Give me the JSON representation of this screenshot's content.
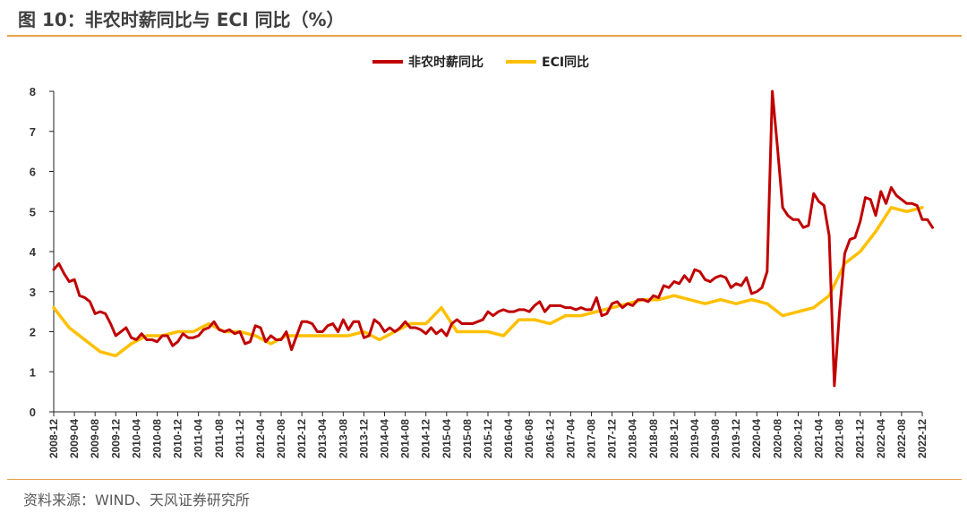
{
  "header": {
    "title": "图 10：非农时薪同比与 ECI 同比（%）"
  },
  "footer": {
    "source": "资料来源：WIND、天风证券研究所"
  },
  "colors": {
    "accent_rule": "#e8a24a",
    "series_wage": "#c00000",
    "series_eci": "#ffc000"
  },
  "chart_data": {
    "type": "line",
    "title": "",
    "xlabel": "",
    "ylabel": "",
    "ylim": [
      0,
      8
    ],
    "yticks": [
      "0",
      "1",
      "2",
      "3",
      "4",
      "5",
      "6",
      "7",
      "8"
    ],
    "legend_position": "top-center",
    "grid": false,
    "xticks": [
      "2008-12",
      "2009-04",
      "2009-08",
      "2009-12",
      "2010-04",
      "2010-08",
      "2010-12",
      "2011-04",
      "2011-08",
      "2011-12",
      "2012-04",
      "2012-08",
      "2012-12",
      "2013-04",
      "2013-08",
      "2013-12",
      "2014-04",
      "2014-08",
      "2014-12",
      "2015-04",
      "2015-08",
      "2015-12",
      "2016-04",
      "2016-08",
      "2016-12",
      "2017-04",
      "2017-08",
      "2017-12",
      "2018-04",
      "2018-08",
      "2018-12",
      "2019-04",
      "2019-08",
      "2019-12",
      "2020-04",
      "2020-08",
      "2020-12",
      "2021-04",
      "2021-08",
      "2021-12",
      "2022-04",
      "2022-08",
      "2022-12"
    ],
    "series": [
      {
        "name": "非农时薪同比",
        "color": "#c00000",
        "points": [
          [
            "2008-12",
            3.55
          ],
          [
            "2009-01",
            3.7
          ],
          [
            "2009-02",
            3.45
          ],
          [
            "2009-03",
            3.25
          ],
          [
            "2009-04",
            3.3
          ],
          [
            "2009-05",
            2.9
          ],
          [
            "2009-06",
            2.85
          ],
          [
            "2009-07",
            2.75
          ],
          [
            "2009-08",
            2.45
          ],
          [
            "2009-09",
            2.5
          ],
          [
            "2009-10",
            2.45
          ],
          [
            "2009-11",
            2.2
          ],
          [
            "2009-12",
            1.9
          ],
          [
            "2010-01",
            2.0
          ],
          [
            "2010-02",
            2.1
          ],
          [
            "2010-03",
            1.85
          ],
          [
            "2010-04",
            1.8
          ],
          [
            "2010-05",
            1.95
          ],
          [
            "2010-06",
            1.8
          ],
          [
            "2010-07",
            1.8
          ],
          [
            "2010-08",
            1.75
          ],
          [
            "2010-09",
            1.9
          ],
          [
            "2010-10",
            1.9
          ],
          [
            "2010-11",
            1.65
          ],
          [
            "2010-12",
            1.75
          ],
          [
            "2011-01",
            1.95
          ],
          [
            "2011-02",
            1.85
          ],
          [
            "2011-03",
            1.85
          ],
          [
            "2011-04",
            1.9
          ],
          [
            "2011-05",
            2.05
          ],
          [
            "2011-06",
            2.1
          ],
          [
            "2011-07",
            2.25
          ],
          [
            "2011-08",
            2.05
          ],
          [
            "2011-09",
            2.0
          ],
          [
            "2011-10",
            2.05
          ],
          [
            "2011-11",
            1.95
          ],
          [
            "2011-12",
            2.0
          ],
          [
            "2012-01",
            1.7
          ],
          [
            "2012-02",
            1.75
          ],
          [
            "2012-03",
            2.15
          ],
          [
            "2012-04",
            2.1
          ],
          [
            "2012-05",
            1.75
          ],
          [
            "2012-06",
            1.9
          ],
          [
            "2012-07",
            1.8
          ],
          [
            "2012-08",
            1.8
          ],
          [
            "2012-09",
            2.0
          ],
          [
            "2012-10",
            1.55
          ],
          [
            "2012-11",
            1.9
          ],
          [
            "2012-12",
            2.25
          ],
          [
            "2013-01",
            2.25
          ],
          [
            "2013-02",
            2.2
          ],
          [
            "2013-03",
            2.0
          ],
          [
            "2013-04",
            2.0
          ],
          [
            "2013-05",
            2.15
          ],
          [
            "2013-06",
            2.2
          ],
          [
            "2013-07",
            2.0
          ],
          [
            "2013-08",
            2.3
          ],
          [
            "2013-09",
            2.05
          ],
          [
            "2013-10",
            2.25
          ],
          [
            "2013-11",
            2.25
          ],
          [
            "2013-12",
            1.85
          ],
          [
            "2014-01",
            1.9
          ],
          [
            "2014-02",
            2.3
          ],
          [
            "2014-03",
            2.2
          ],
          [
            "2014-04",
            2.0
          ],
          [
            "2014-05",
            2.1
          ],
          [
            "2014-06",
            2.0
          ],
          [
            "2014-07",
            2.1
          ],
          [
            "2014-08",
            2.25
          ],
          [
            "2014-09",
            2.1
          ],
          [
            "2014-10",
            2.1
          ],
          [
            "2014-11",
            2.05
          ],
          [
            "2014-12",
            1.95
          ],
          [
            "2015-01",
            2.1
          ],
          [
            "2015-02",
            1.95
          ],
          [
            "2015-03",
            2.05
          ],
          [
            "2015-04",
            1.9
          ],
          [
            "2015-05",
            2.2
          ],
          [
            "2015-06",
            2.3
          ],
          [
            "2015-07",
            2.2
          ],
          [
            "2015-08",
            2.2
          ],
          [
            "2015-09",
            2.2
          ],
          [
            "2015-10",
            2.25
          ],
          [
            "2015-11",
            2.3
          ],
          [
            "2015-12",
            2.5
          ],
          [
            "2016-01",
            2.4
          ],
          [
            "2016-02",
            2.5
          ],
          [
            "2016-03",
            2.55
          ],
          [
            "2016-04",
            2.5
          ],
          [
            "2016-05",
            2.5
          ],
          [
            "2016-06",
            2.55
          ],
          [
            "2016-07",
            2.55
          ],
          [
            "2016-08",
            2.5
          ],
          [
            "2016-09",
            2.65
          ],
          [
            "2016-10",
            2.75
          ],
          [
            "2016-11",
            2.5
          ],
          [
            "2016-12",
            2.65
          ],
          [
            "2017-01",
            2.65
          ],
          [
            "2017-02",
            2.65
          ],
          [
            "2017-03",
            2.6
          ],
          [
            "2017-04",
            2.6
          ],
          [
            "2017-05",
            2.55
          ],
          [
            "2017-06",
            2.6
          ],
          [
            "2017-07",
            2.55
          ],
          [
            "2017-08",
            2.55
          ],
          [
            "2017-09",
            2.85
          ],
          [
            "2017-10",
            2.4
          ],
          [
            "2017-11",
            2.45
          ],
          [
            "2017-12",
            2.7
          ],
          [
            "2018-01",
            2.75
          ],
          [
            "2018-02",
            2.6
          ],
          [
            "2018-03",
            2.7
          ],
          [
            "2018-04",
            2.65
          ],
          [
            "2018-05",
            2.8
          ],
          [
            "2018-06",
            2.8
          ],
          [
            "2018-07",
            2.75
          ],
          [
            "2018-08",
            2.9
          ],
          [
            "2018-09",
            2.85
          ],
          [
            "2018-10",
            3.15
          ],
          [
            "2018-11",
            3.1
          ],
          [
            "2018-12",
            3.25
          ],
          [
            "2019-01",
            3.2
          ],
          [
            "2019-02",
            3.4
          ],
          [
            "2019-03",
            3.25
          ],
          [
            "2019-04",
            3.55
          ],
          [
            "2019-05",
            3.5
          ],
          [
            "2019-06",
            3.3
          ],
          [
            "2019-07",
            3.25
          ],
          [
            "2019-08",
            3.35
          ],
          [
            "2019-09",
            3.4
          ],
          [
            "2019-10",
            3.35
          ],
          [
            "2019-11",
            3.1
          ],
          [
            "2019-12",
            3.2
          ],
          [
            "2020-01",
            3.15
          ],
          [
            "2020-02",
            3.35
          ],
          [
            "2020-03",
            2.95
          ],
          [
            "2020-04",
            3.0
          ],
          [
            "2020-05",
            3.1
          ],
          [
            "2020-06",
            3.5
          ],
          [
            "2020-07",
            8.0
          ],
          [
            "2020-08",
            6.6
          ],
          [
            "2020-09",
            5.1
          ],
          [
            "2020-10",
            4.9
          ],
          [
            "2020-11",
            4.8
          ],
          [
            "2020-12",
            4.8
          ],
          [
            "2021-01",
            4.6
          ],
          [
            "2021-02",
            4.65
          ],
          [
            "2021-03",
            5.45
          ],
          [
            "2021-04",
            5.25
          ],
          [
            "2021-05",
            5.15
          ],
          [
            "2021-06",
            4.4
          ],
          [
            "2021-07",
            0.65
          ],
          [
            "2021-08",
            2.5
          ],
          [
            "2021-09",
            3.95
          ],
          [
            "2021-10",
            4.3
          ],
          [
            "2021-11",
            4.35
          ],
          [
            "2021-12",
            4.75
          ],
          [
            "2022-01",
            5.35
          ],
          [
            "2022-02",
            5.3
          ],
          [
            "2022-03",
            4.9
          ],
          [
            "2022-04",
            5.5
          ],
          [
            "2022-05",
            5.2
          ],
          [
            "2022-06",
            5.6
          ],
          [
            "2022-07",
            5.4
          ],
          [
            "2022-08",
            5.3
          ],
          [
            "2022-09",
            5.2
          ],
          [
            "2022-10",
            5.2
          ],
          [
            "2022-11",
            5.15
          ],
          [
            "2022-12",
            4.8
          ],
          [
            "2023-01",
            4.8
          ],
          [
            "2023-02",
            4.6
          ]
        ]
      },
      {
        "name": "ECI同比",
        "color": "#ffc000",
        "points": [
          [
            "2008-12",
            2.6
          ],
          [
            "2009-03",
            2.1
          ],
          [
            "2009-06",
            1.8
          ],
          [
            "2009-09",
            1.5
          ],
          [
            "2009-12",
            1.4
          ],
          [
            "2010-03",
            1.7
          ],
          [
            "2010-06",
            1.9
          ],
          [
            "2010-09",
            1.9
          ],
          [
            "2010-12",
            2.0
          ],
          [
            "2011-03",
            2.0
          ],
          [
            "2011-06",
            2.2
          ],
          [
            "2011-09",
            2.0
          ],
          [
            "2011-12",
            2.0
          ],
          [
            "2012-03",
            1.9
          ],
          [
            "2012-06",
            1.7
          ],
          [
            "2012-09",
            1.9
          ],
          [
            "2012-12",
            1.9
          ],
          [
            "2013-03",
            1.9
          ],
          [
            "2013-06",
            1.9
          ],
          [
            "2013-09",
            1.9
          ],
          [
            "2013-12",
            2.0
          ],
          [
            "2014-03",
            1.8
          ],
          [
            "2014-06",
            2.0
          ],
          [
            "2014-09",
            2.2
          ],
          [
            "2014-12",
            2.2
          ],
          [
            "2015-03",
            2.6
          ],
          [
            "2015-06",
            2.0
          ],
          [
            "2015-09",
            2.0
          ],
          [
            "2015-12",
            2.0
          ],
          [
            "2016-03",
            1.9
          ],
          [
            "2016-06",
            2.3
          ],
          [
            "2016-09",
            2.3
          ],
          [
            "2016-12",
            2.2
          ],
          [
            "2017-03",
            2.4
          ],
          [
            "2017-06",
            2.4
          ],
          [
            "2017-09",
            2.5
          ],
          [
            "2017-12",
            2.6
          ],
          [
            "2018-03",
            2.7
          ],
          [
            "2018-06",
            2.8
          ],
          [
            "2018-09",
            2.8
          ],
          [
            "2018-12",
            2.9
          ],
          [
            "2019-03",
            2.8
          ],
          [
            "2019-06",
            2.7
          ],
          [
            "2019-09",
            2.8
          ],
          [
            "2019-12",
            2.7
          ],
          [
            "2020-03",
            2.8
          ],
          [
            "2020-06",
            2.7
          ],
          [
            "2020-09",
            2.4
          ],
          [
            "2020-12",
            2.5
          ],
          [
            "2021-03",
            2.6
          ],
          [
            "2021-06",
            2.9
          ],
          [
            "2021-09",
            3.7
          ],
          [
            "2021-12",
            4.0
          ],
          [
            "2022-03",
            4.5
          ],
          [
            "2022-06",
            5.1
          ],
          [
            "2022-09",
            5.0
          ],
          [
            "2022-12",
            5.1
          ]
        ]
      }
    ]
  }
}
